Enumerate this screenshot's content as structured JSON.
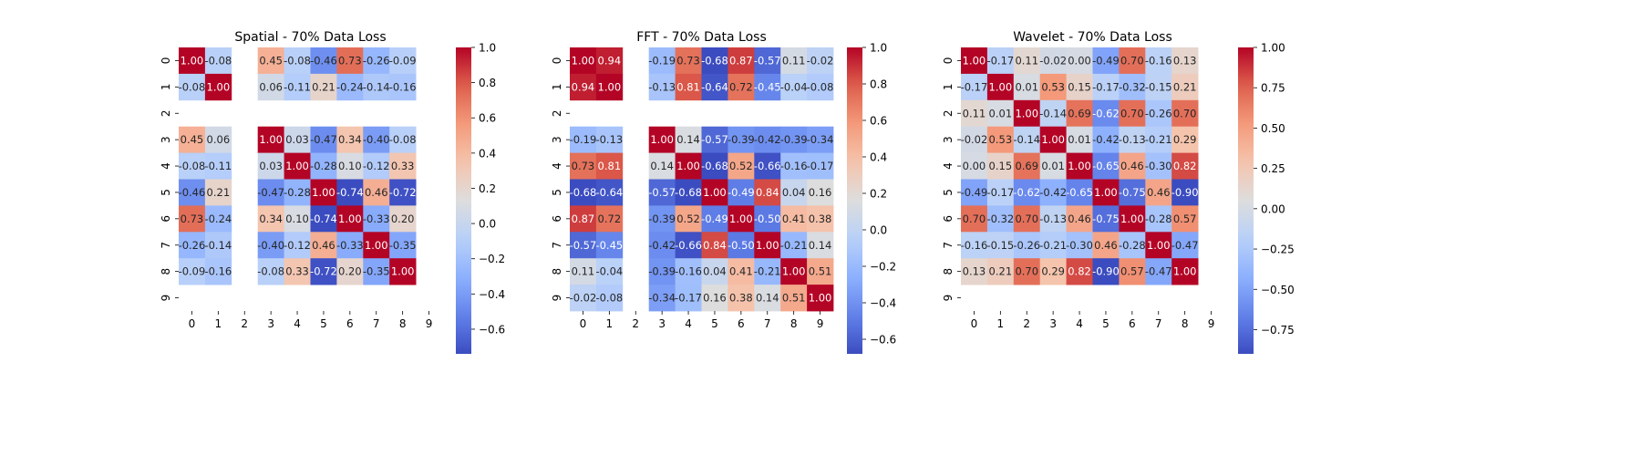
{
  "chart_data": [
    {
      "type": "heatmap",
      "title": "Spatial - 70% Data Loss",
      "xlabel": "",
      "ylabel": "",
      "x_ticks": [
        "0",
        "1",
        "2",
        "3",
        "4",
        "5",
        "6",
        "7",
        "8",
        "9"
      ],
      "y_ticks": [
        "0",
        "1",
        "2",
        "3",
        "4",
        "5",
        "6",
        "7",
        "8",
        "9"
      ],
      "colormap": "coolwarm",
      "vmin": -0.74,
      "vmax": 1.0,
      "colorbar_ticks": [
        "1.0",
        "0.8",
        "0.6",
        "0.4",
        "0.2",
        "0.0",
        "−0.2",
        "−0.4",
        "−0.6"
      ],
      "colorbar_tick_values": [
        1.0,
        0.8,
        0.6,
        0.4,
        0.2,
        0.0,
        -0.2,
        -0.4,
        -0.6
      ],
      "matrix": [
        [
          1.0,
          -0.08,
          null,
          0.45,
          -0.08,
          -0.46,
          0.73,
          -0.26,
          -0.09,
          null
        ],
        [
          -0.08,
          1.0,
          null,
          0.06,
          -0.11,
          0.21,
          -0.24,
          -0.14,
          -0.16,
          null
        ],
        [
          null,
          null,
          null,
          null,
          null,
          null,
          null,
          null,
          null,
          null
        ],
        [
          0.45,
          0.06,
          null,
          1.0,
          0.03,
          -0.47,
          0.34,
          -0.4,
          -0.08,
          null
        ],
        [
          -0.08,
          -0.11,
          null,
          0.03,
          1.0,
          -0.28,
          0.1,
          -0.12,
          0.33,
          null
        ],
        [
          -0.46,
          0.21,
          null,
          -0.47,
          -0.28,
          1.0,
          -0.74,
          0.46,
          -0.72,
          null
        ],
        [
          0.73,
          -0.24,
          null,
          0.34,
          0.1,
          -0.74,
          1.0,
          -0.33,
          0.2,
          null
        ],
        [
          -0.26,
          -0.14,
          null,
          -0.4,
          -0.12,
          0.46,
          -0.33,
          1.0,
          -0.35,
          null
        ],
        [
          -0.09,
          -0.16,
          null,
          -0.08,
          0.33,
          -0.72,
          0.2,
          -0.35,
          1.0,
          null
        ],
        [
          null,
          null,
          null,
          null,
          null,
          null,
          null,
          null,
          null,
          null
        ]
      ]
    },
    {
      "type": "heatmap",
      "title": "FFT - 70% Data Loss",
      "xlabel": "",
      "ylabel": "",
      "x_ticks": [
        "0",
        "1",
        "2",
        "3",
        "4",
        "5",
        "6",
        "7",
        "8",
        "9"
      ],
      "y_ticks": [
        "0",
        "1",
        "2",
        "3",
        "4",
        "5",
        "6",
        "7",
        "8",
        "9"
      ],
      "colormap": "coolwarm",
      "vmin": -0.68,
      "vmax": 1.0,
      "colorbar_ticks": [
        "1.0",
        "0.8",
        "0.6",
        "0.4",
        "0.2",
        "0.0",
        "−0.2",
        "−0.4",
        "−0.6"
      ],
      "colorbar_tick_values": [
        1.0,
        0.8,
        0.6,
        0.4,
        0.2,
        0.0,
        -0.2,
        -0.4,
        -0.6
      ],
      "matrix": [
        [
          1.0,
          0.94,
          null,
          -0.19,
          0.73,
          -0.68,
          0.87,
          -0.57,
          0.11,
          -0.02
        ],
        [
          0.94,
          1.0,
          null,
          -0.13,
          0.81,
          -0.64,
          0.72,
          -0.45,
          -0.04,
          -0.08
        ],
        [
          null,
          null,
          null,
          null,
          null,
          null,
          null,
          null,
          null,
          null
        ],
        [
          -0.19,
          -0.13,
          null,
          1.0,
          0.14,
          -0.57,
          -0.39,
          -0.42,
          -0.39,
          -0.34
        ],
        [
          0.73,
          0.81,
          null,
          0.14,
          1.0,
          -0.68,
          0.52,
          -0.66,
          -0.16,
          -0.17
        ],
        [
          -0.68,
          -0.64,
          null,
          -0.57,
          -0.68,
          1.0,
          -0.49,
          0.84,
          0.04,
          0.16
        ],
        [
          0.87,
          0.72,
          null,
          -0.39,
          0.52,
          -0.49,
          1.0,
          -0.5,
          0.41,
          0.38
        ],
        [
          -0.57,
          -0.45,
          null,
          -0.42,
          -0.66,
          0.84,
          -0.5,
          1.0,
          -0.21,
          0.14
        ],
        [
          0.11,
          -0.04,
          null,
          -0.39,
          -0.16,
          0.04,
          0.41,
          -0.21,
          1.0,
          0.51
        ],
        [
          -0.02,
          -0.08,
          null,
          -0.34,
          -0.17,
          0.16,
          0.38,
          0.14,
          0.51,
          1.0
        ]
      ]
    },
    {
      "type": "heatmap",
      "title": "Wavelet - 70% Data Loss",
      "xlabel": "",
      "ylabel": "",
      "x_ticks": [
        "0",
        "1",
        "2",
        "3",
        "4",
        "5",
        "6",
        "7",
        "8",
        "9"
      ],
      "y_ticks": [
        "0",
        "1",
        "2",
        "3",
        "4",
        "5",
        "6",
        "7",
        "8",
        "9"
      ],
      "colormap": "coolwarm",
      "vmin": -0.9,
      "vmax": 1.0,
      "colorbar_ticks": [
        "1.00",
        "0.75",
        "0.50",
        "0.25",
        "0.00",
        "−0.25",
        "−0.50",
        "−0.75"
      ],
      "colorbar_tick_values": [
        1.0,
        0.75,
        0.5,
        0.25,
        0.0,
        -0.25,
        -0.5,
        -0.75
      ],
      "matrix": [
        [
          1.0,
          -0.17,
          0.11,
          -0.02,
          0.0,
          -0.49,
          0.7,
          -0.16,
          0.13,
          null
        ],
        [
          -0.17,
          1.0,
          0.01,
          0.53,
          0.15,
          -0.17,
          -0.32,
          -0.15,
          0.21,
          null
        ],
        [
          0.11,
          0.01,
          1.0,
          -0.14,
          0.69,
          -0.62,
          0.7,
          -0.26,
          0.7,
          null
        ],
        [
          -0.02,
          0.53,
          -0.14,
          1.0,
          0.01,
          -0.42,
          -0.13,
          -0.21,
          0.29,
          null
        ],
        [
          0.0,
          0.15,
          0.69,
          0.01,
          1.0,
          -0.65,
          0.46,
          -0.3,
          0.82,
          null
        ],
        [
          -0.49,
          -0.17,
          -0.62,
          -0.42,
          -0.65,
          1.0,
          -0.75,
          0.46,
          -0.9,
          null
        ],
        [
          0.7,
          -0.32,
          0.7,
          -0.13,
          0.46,
          -0.75,
          1.0,
          -0.28,
          0.57,
          null
        ],
        [
          -0.16,
          -0.15,
          -0.26,
          -0.21,
          -0.3,
          0.46,
          -0.28,
          1.0,
          -0.47,
          null
        ],
        [
          0.13,
          0.21,
          0.7,
          0.29,
          0.82,
          -0.9,
          0.57,
          -0.47,
          1.0,
          null
        ],
        [
          null,
          null,
          null,
          null,
          null,
          null,
          null,
          null,
          null,
          null
        ]
      ]
    }
  ]
}
